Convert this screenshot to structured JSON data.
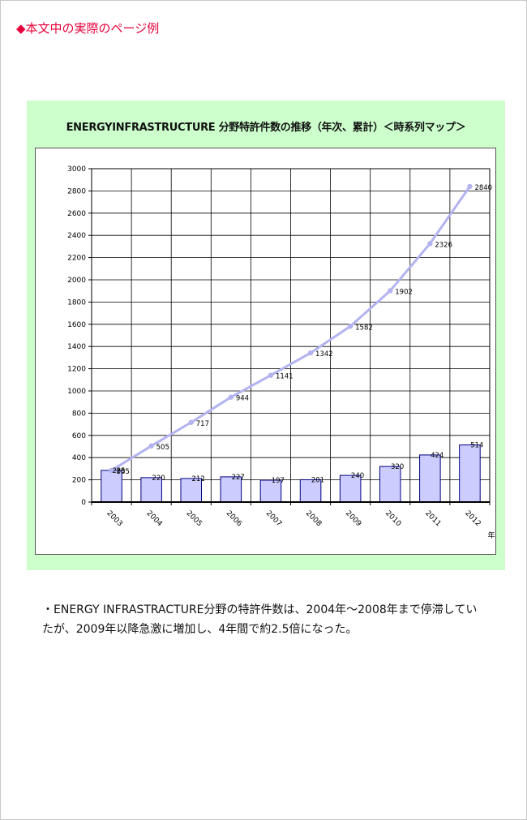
{
  "page": {
    "heading": "◆本文中の実際のページ例",
    "caption_lines": [
      "・ENERGY INFRASTRACTURE分野の特許件数は、2004年～2008年まで停滞してい",
      "たが、2009年以降急激に増加し、4年間で約2.5倍になった。"
    ]
  },
  "colors": {
    "heading": "#e8003a",
    "panel_bg": "#ccffcc",
    "bar_fill": "#ccccff",
    "bar_stroke": "#000080",
    "line": "#b3b3f0"
  },
  "chart_data": {
    "type": "bar",
    "title": "ENERGYINFRASTRUCTURE 分野特許件数の推移（年次、累計）＜時系列マップ＞",
    "xlabel": "年",
    "ylabel": "",
    "categories": [
      "2003",
      "2004",
      "2005",
      "2006",
      "2007",
      "2008",
      "2009",
      "2010",
      "2011",
      "2012"
    ],
    "ylim": [
      0,
      3000
    ],
    "yticks": [
      0,
      200,
      400,
      600,
      800,
      1000,
      1200,
      1400,
      1600,
      1800,
      2000,
      2200,
      2400,
      2600,
      2800,
      3000
    ],
    "grid": true,
    "series": [
      {
        "kind": "bar",
        "values": [
          285,
          220,
          212,
          227,
          197,
          201,
          240,
          320,
          424,
          514
        ]
      },
      {
        "kind": "line",
        "values": [
          285,
          505,
          717,
          944,
          1141,
          1342,
          1582,
          1902,
          2326,
          2840
        ]
      }
    ]
  }
}
